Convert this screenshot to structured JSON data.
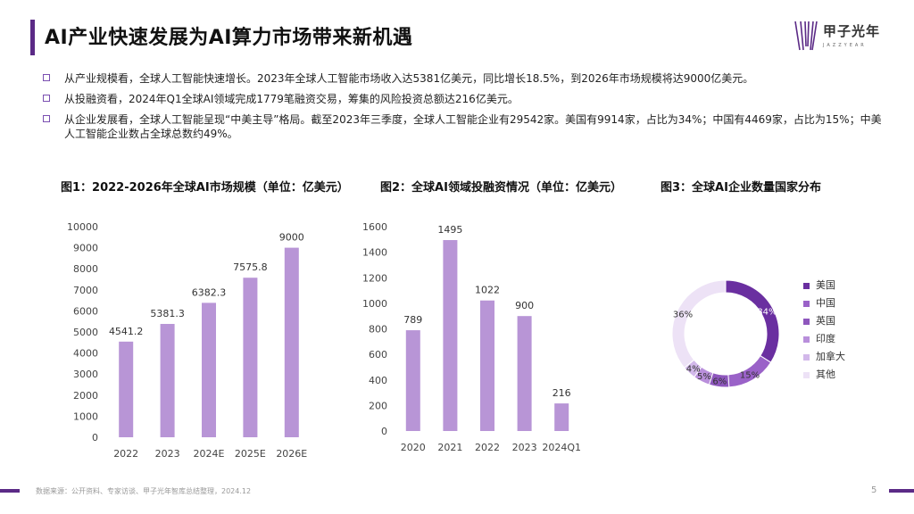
{
  "header": {
    "title": "AI产业快速发展为AI算力市场带来新机遇",
    "logo_text": "甲子光年",
    "logo_sub": "JAZZYEAR"
  },
  "bullets": [
    "从产业规模看，全球人工智能快速增长。2023年全球人工智能市场收入达5381亿美元，同比增长18.5%，到2026年市场规模将达9000亿美元。",
    "从投融资看，2024年Q1全球AI领域完成1779笔融资交易，筹集的风险投资总额达216亿美元。",
    "从企业发展看，全球人工智能呈现“中美主导”格局。截至2023年三季度，全球人工智能企业有29542家。美国有9914家，占比为34%；中国有4469家，占比为15%；中美人工智能企业数占全球总数约49%。"
  ],
  "colors": {
    "accent": "#5b2a86",
    "bar": "#b895d6"
  },
  "chart_data": [
    {
      "type": "bar",
      "title": "图1：2022-2026年全球AI市场规模（单位：亿美元）",
      "categories": [
        "2022",
        "2023",
        "2024E",
        "2025E",
        "2026E"
      ],
      "values": [
        4541.2,
        5381.3,
        6382.3,
        7575.8,
        9000
      ],
      "labels": [
        "4541.2",
        "5381.3",
        "6382.3",
        "7575.8",
        "9000"
      ],
      "ylim": [
        0,
        10000
      ],
      "yticks": [
        "0",
        "1000",
        "2000",
        "3000",
        "4000",
        "5000",
        "6000",
        "7000",
        "8000",
        "9000",
        "10000"
      ],
      "grid": false
    },
    {
      "type": "bar",
      "title": "图2：全球AI领域投融资情况（单位：亿美元）",
      "categories": [
        "2020",
        "2021",
        "2022",
        "2023",
        "2024Q1"
      ],
      "values": [
        789,
        1495,
        1022,
        900,
        216
      ],
      "labels": [
        "789",
        "1495",
        "1022",
        "900",
        "216"
      ],
      "ylim": [
        0,
        1600
      ],
      "yticks": [
        "0",
        "200",
        "400",
        "600",
        "800",
        "1000",
        "1200",
        "1400",
        "1600"
      ],
      "grid": false
    },
    {
      "type": "pie",
      "title": "图3：全球AI企业数量国家分布",
      "categories": [
        "美国",
        "中国",
        "英国",
        "印度",
        "加拿大",
        "其他"
      ],
      "values": [
        34,
        15,
        6,
        5,
        4,
        36
      ],
      "labels": [
        "34%",
        "15%",
        "6%",
        "5%",
        "4%",
        "36%"
      ],
      "colors": [
        "#6a2fa0",
        "#9a62c8",
        "#8e57bd",
        "#b98fdb",
        "#d2b8ea",
        "#ede2f6"
      ],
      "legend": "right"
    }
  ],
  "footer": {
    "source": "数据来源：公开资料、专家访谈、甲子光年智库总结整理，2024.12",
    "page": "5"
  }
}
